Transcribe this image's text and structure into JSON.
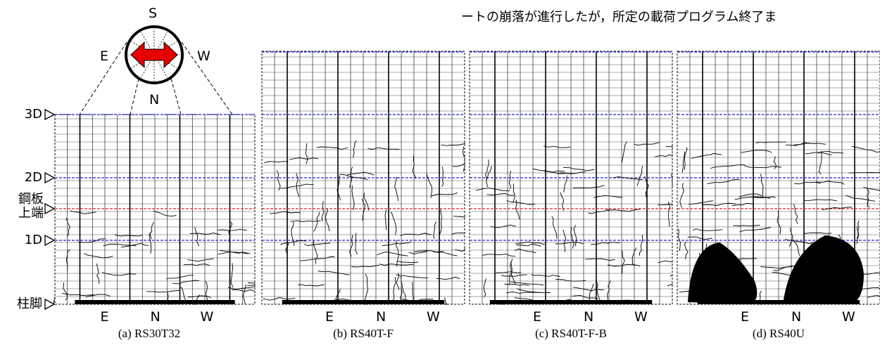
{
  "header_text": "ートの崩落が進行したが，所定の載荷プログラム終了ま",
  "compass": {
    "top": "S",
    "left": "E",
    "right": "W",
    "bottom": "N"
  },
  "levels": [
    "3D",
    "2D",
    "鋼板上端",
    "1D",
    "柱脚"
  ],
  "panels": [
    {
      "directions": [
        "E",
        "N",
        "W"
      ],
      "caption": "(a) RS30T32"
    },
    {
      "directions": [
        "E",
        "N",
        "W"
      ],
      "caption": "(b) RS40T-F"
    },
    {
      "directions": [
        "E",
        "N",
        "W"
      ],
      "caption": "(c) RS40T-F-B"
    },
    {
      "directions": [
        "E",
        "N",
        "W"
      ],
      "caption": "(d) RS40U"
    }
  ]
}
